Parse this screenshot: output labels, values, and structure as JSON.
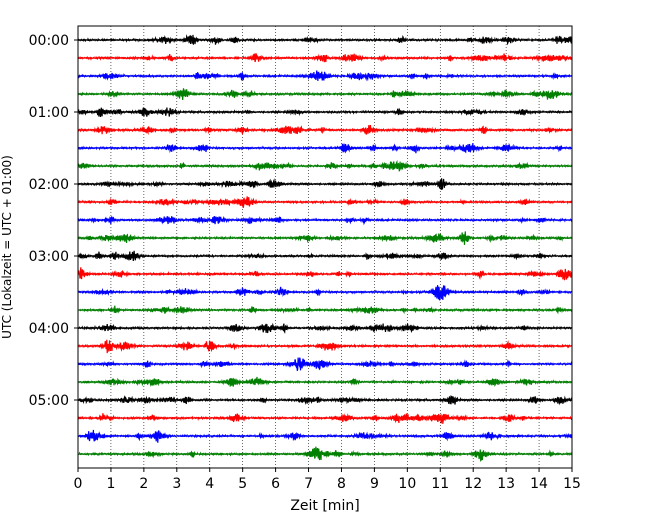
{
  "chart_data": {
    "type": "line",
    "title": "",
    "xlabel": "Zeit  [min]",
    "ylabel": "UTC (Lokalzeit = UTC + 01:00)",
    "xlim": [
      0,
      15
    ],
    "x_ticks": [
      "0",
      "1",
      "2",
      "3",
      "4",
      "5",
      "6",
      "7",
      "8",
      "9",
      "10",
      "11",
      "12",
      "13",
      "14",
      "15"
    ],
    "y_tick_labels": [
      "00:00",
      "01:00",
      "02:00",
      "03:00",
      "04:00",
      "05:00"
    ],
    "traces_per_hour": 4,
    "trace_count": 24,
    "trace_minutes": 15,
    "trace_colors": [
      "#000000",
      "#ff0000",
      "#0000ff",
      "#007f00"
    ],
    "vertical_grid": "dotted",
    "legend": "none"
  }
}
